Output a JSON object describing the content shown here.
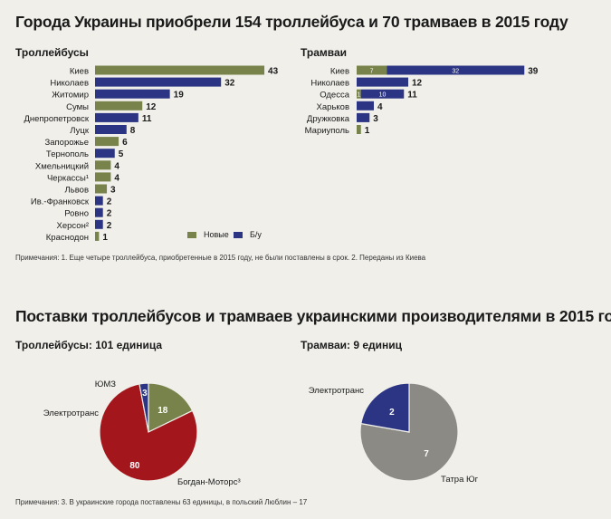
{
  "title": "Города Украины приобрели 154 троллейбуса и 70 трамваев в 2015 году",
  "trolley_heading": "Троллейбусы",
  "tram_heading": "Трамваи",
  "legend": {
    "new": "Новые",
    "used": "Б/у"
  },
  "colors": {
    "new": "#77834a",
    "used": "#2b3583",
    "bogdan": "#a3161b",
    "umz": "#77834a",
    "tatra": "#8c8a84",
    "elektrotrans": "#2b3583"
  },
  "note1": "Примечания: 1. Еще четыре троллейбуса, приобретенные в 2015 году, не были поставлены в срок. 2. Переданы из Киева",
  "title2": "Поставки троллейбусов и трамваев украинскими производителями в 2015 году",
  "pie_trolley_heading": "Троллейбусы: 101 единица",
  "pie_tram_heading": "Трамваи: 9 единиц",
  "note2": "Примечания: 3. В украинские города поставлены 63 единицы, в польский Люблин – 17",
  "chart_data": [
    {
      "type": "bar",
      "title": "Троллейбусы",
      "categories": [
        "Киев",
        "Николаев",
        "Житомир",
        "Сумы",
        "Днепропетровск",
        "Луцк",
        "Запорожье",
        "Тернополь",
        "Хмельницкий",
        "Черкассы¹",
        "Львов",
        "Ив.-Франковск",
        "Ровно",
        "Херсон²",
        "Краснодон"
      ],
      "series": [
        {
          "name": "Новые",
          "values": [
            43,
            0,
            0,
            12,
            0,
            0,
            6,
            0,
            4,
            4,
            3,
            0,
            0,
            0,
            1
          ]
        },
        {
          "name": "Б/у",
          "values": [
            0,
            32,
            19,
            0,
            11,
            8,
            0,
            5,
            0,
            0,
            0,
            2,
            2,
            2,
            0
          ]
        }
      ],
      "totals": [
        "43",
        "32",
        "19",
        "12",
        "11",
        "8",
        "6",
        "5",
        "4",
        "4",
        "3",
        "2",
        "2",
        "2",
        "1"
      ]
    },
    {
      "type": "bar",
      "title": "Трамваи",
      "categories": [
        "Киев",
        "Николаев",
        "Одесса",
        "Харьков",
        "Дружковка",
        "Мариуполь"
      ],
      "series": [
        {
          "name": "Новые",
          "values": [
            7,
            0,
            1,
            0,
            0,
            1
          ]
        },
        {
          "name": "Б/у",
          "values": [
            32,
            12,
            10,
            4,
            3,
            0
          ]
        }
      ],
      "segment_labels": [
        [
          "7",
          "32"
        ],
        [
          "",
          ""
        ],
        [
          "1",
          "10"
        ],
        [
          "",
          ""
        ],
        [
          "",
          ""
        ],
        [
          "",
          ""
        ]
      ],
      "totals": [
        "39",
        "12",
        "11",
        "4",
        "3",
        "1"
      ]
    },
    {
      "type": "pie",
      "title": "Троллейбусы: 101 единица",
      "slices": [
        {
          "name": "ЮМЗ",
          "value": 18,
          "label": "18",
          "color": "#77834a"
        },
        {
          "name": "Богдан-Моторс³",
          "value": 80,
          "label": "80",
          "color": "#a3161b"
        },
        {
          "name": "Электротранс",
          "value": 3,
          "label": "3",
          "color": "#2b3583"
        }
      ]
    },
    {
      "type": "pie",
      "title": "Трамваи: 9 единиц",
      "slices": [
        {
          "name": "Татра Юг",
          "value": 7,
          "label": "7",
          "color": "#8c8a84"
        },
        {
          "name": "Электротранс",
          "value": 2,
          "label": "2",
          "color": "#2b3583"
        }
      ]
    }
  ]
}
